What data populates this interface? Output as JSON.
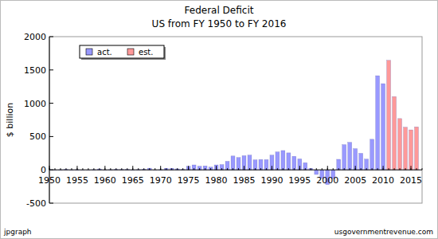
{
  "chart_data": {
    "type": "bar",
    "title": "Federal Deficit",
    "subtitle": "US from FY 1950 to FY 2016",
    "y_label": "$ billion",
    "annotations": [
      "jpgraph",
      "usgovernmentrevenue.com"
    ],
    "x": [
      1950,
      1951,
      1952,
      1953,
      1954,
      1955,
      1956,
      1957,
      1958,
      1959,
      1960,
      1961,
      1962,
      1963,
      1964,
      1965,
      1966,
      1967,
      1968,
      1969,
      1970,
      1971,
      1972,
      1973,
      1974,
      1975,
      1976,
      1977,
      1978,
      1979,
      1980,
      1981,
      1982,
      1983,
      1984,
      1985,
      1986,
      1987,
      1988,
      1989,
      1990,
      1991,
      1992,
      1993,
      1994,
      1995,
      1996,
      1997,
      1998,
      1999,
      2000,
      2001,
      2002,
      2003,
      2004,
      2005,
      2006,
      2007,
      2008,
      2009,
      2010,
      2011,
      2012,
      2013,
      2014,
      2015,
      2016
    ],
    "series": [
      {
        "name": "act.",
        "color": "#9999ff",
        "values": [
          3,
          -6,
          2,
          7,
          1,
          3,
          -4,
          -3,
          3,
          13,
          0,
          3,
          7,
          5,
          6,
          1,
          4,
          9,
          25,
          -3,
          3,
          23,
          23,
          15,
          6,
          53,
          74,
          54,
          59,
          41,
          74,
          79,
          128,
          208,
          185,
          212,
          221,
          150,
          155,
          153,
          221,
          269,
          290,
          255,
          203,
          164,
          107,
          22,
          -69,
          -126,
          -220,
          -128,
          158,
          378,
          413,
          318,
          248,
          161,
          459,
          1413,
          1294,
          null,
          null,
          null,
          null,
          null,
          null
        ]
      },
      {
        "name": "est.",
        "color": "#ff9999",
        "values": [
          null,
          null,
          null,
          null,
          null,
          null,
          null,
          null,
          null,
          null,
          null,
          null,
          null,
          null,
          null,
          null,
          null,
          null,
          null,
          null,
          null,
          null,
          null,
          null,
          null,
          null,
          null,
          null,
          null,
          null,
          null,
          null,
          null,
          null,
          null,
          null,
          null,
          null,
          null,
          null,
          null,
          null,
          null,
          null,
          null,
          null,
          null,
          null,
          null,
          null,
          null,
          null,
          null,
          null,
          null,
          null,
          null,
          null,
          null,
          null,
          null,
          1645,
          1100,
          770,
          640,
          600,
          645
        ]
      }
    ],
    "xlim": [
      1950,
      2017
    ],
    "xticks": [
      1950,
      1955,
      1960,
      1965,
      1970,
      1975,
      1980,
      1985,
      1990,
      1995,
      2000,
      2005,
      2010,
      2015
    ],
    "ylim": [
      -500,
      2000
    ],
    "yticks": [
      -500,
      0,
      500,
      1000,
      1500,
      2000
    ],
    "grid": false,
    "legend": "upper left"
  }
}
